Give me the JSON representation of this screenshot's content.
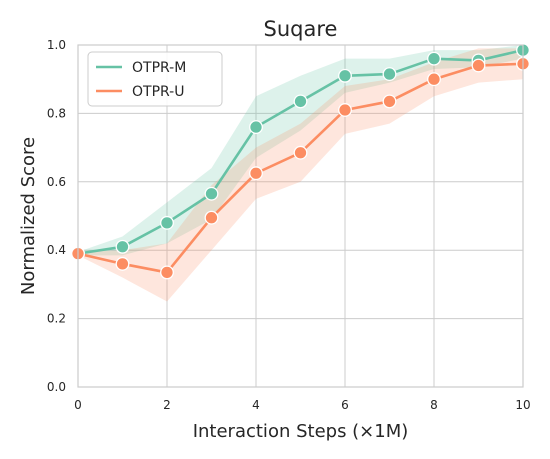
{
  "chart_data": {
    "type": "line",
    "title": "Suqare",
    "xlabel": "Interaction Steps (×1M)",
    "ylabel": "Normalized Score",
    "xlim": [
      0,
      10
    ],
    "ylim": [
      0.0,
      1.0
    ],
    "xticks": [
      "0",
      "2",
      "4",
      "6",
      "8",
      "10"
    ],
    "yticks": [
      "0.0",
      "0.2",
      "0.4",
      "0.6",
      "0.8",
      "1.0"
    ],
    "grid": true,
    "legend_position": "upper-left",
    "x": [
      0,
      1,
      2,
      3,
      4,
      5,
      6,
      7,
      8,
      9,
      10
    ],
    "series": [
      {
        "name": "OTPR-M",
        "color": "#66c2a5",
        "values": [
          0.39,
          0.41,
          0.48,
          0.565,
          0.76,
          0.835,
          0.91,
          0.915,
          0.96,
          0.955,
          0.985
        ],
        "lower": [
          0.385,
          0.385,
          0.42,
          0.49,
          0.67,
          0.75,
          0.86,
          0.89,
          0.93,
          0.935,
          0.96
        ],
        "upper": [
          0.395,
          0.44,
          0.54,
          0.64,
          0.85,
          0.91,
          0.96,
          0.96,
          0.985,
          0.985,
          1.0
        ]
      },
      {
        "name": "OTPR-U",
        "color": "#fc8d62",
        "values": [
          0.39,
          0.36,
          0.335,
          0.495,
          0.625,
          0.685,
          0.81,
          0.835,
          0.9,
          0.94,
          0.945
        ],
        "lower": [
          0.385,
          0.32,
          0.25,
          0.4,
          0.55,
          0.6,
          0.74,
          0.77,
          0.85,
          0.89,
          0.9
        ],
        "upper": [
          0.395,
          0.4,
          0.42,
          0.59,
          0.7,
          0.77,
          0.88,
          0.9,
          0.95,
          0.99,
          0.99
        ]
      }
    ]
  }
}
